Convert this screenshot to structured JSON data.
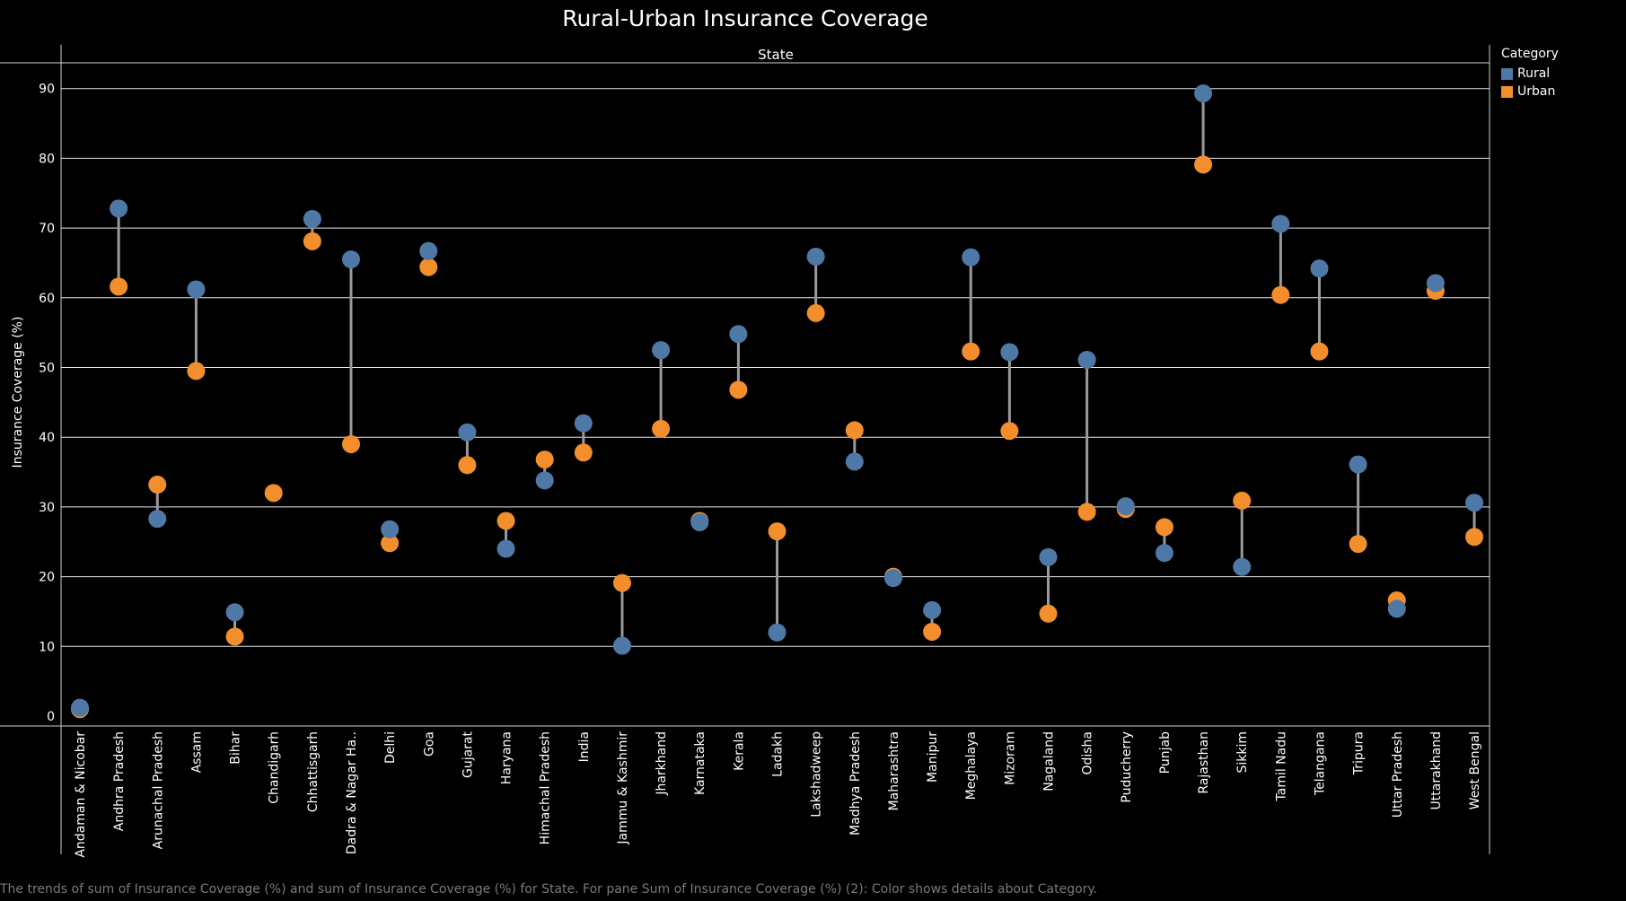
{
  "title": "Rural-Urban Insurance Coverage",
  "caption": "The trends of sum of Insurance Coverage (%) and sum of Insurance Coverage (%) for State.  For pane Sum of Insurance Coverage (%) (2):  Color shows details about Category.",
  "legend": {
    "title": "Category",
    "items": [
      {
        "label": "Rural",
        "color": "#4e79a7"
      },
      {
        "label": "Urban",
        "color": "#f28e2b"
      }
    ]
  },
  "chart_data": {
    "type": "dumbbell",
    "column_header": "State",
    "ylabel": "Insurance Coverage (%)",
    "ylim": [
      0,
      95
    ],
    "yticks": [
      0,
      10,
      20,
      30,
      40,
      50,
      60,
      70,
      80,
      90
    ],
    "grid": true,
    "legend_position": "top-right",
    "categories": [
      "Andaman & Nicobar",
      "Andhra Pradesh",
      "Arunachal Pradesh",
      "Assam",
      "Bihar",
      "Chandigarh",
      "Chhattisgarh",
      "Dadra & Nagar Ha..",
      "Delhi",
      "Goa",
      "Gujarat",
      "Haryana",
      "Himachal Pradesh",
      "India",
      "Jammu & Kashmir",
      "Jharkhand",
      "Karnataka",
      "Kerala",
      "Ladakh",
      "Lakshadweep",
      "Madhya Pradesh",
      "Maharashtra",
      "Manipur",
      "Meghalaya",
      "Mizoram",
      "Nagaland",
      "Odisha",
      "Puducherry",
      "Punjab",
      "Rajasthan",
      "Sikkim",
      "Tamil Nadu",
      "Telangana",
      "Tripura",
      "Uttar Pradesh",
      "Uttarakhand",
      "West Bengal"
    ],
    "series": [
      {
        "name": "Rural",
        "color": "#4e79a7",
        "values": [
          1.2,
          72.8,
          28.3,
          61.2,
          14.9,
          null,
          71.3,
          65.5,
          26.8,
          66.7,
          40.7,
          24.0,
          33.8,
          42.0,
          10.1,
          52.5,
          27.8,
          54.8,
          12.0,
          65.9,
          36.5,
          19.8,
          15.2,
          65.8,
          52.2,
          22.8,
          51.1,
          30.1,
          23.4,
          89.3,
          21.4,
          70.6,
          64.2,
          36.1,
          15.4,
          62.1,
          30.6
        ]
      },
      {
        "name": "Urban",
        "color": "#f28e2b",
        "values": [
          1.0,
          61.6,
          33.2,
          49.5,
          11.4,
          32.0,
          68.1,
          39.0,
          24.8,
          64.4,
          36.0,
          28.0,
          36.8,
          37.8,
          19.1,
          41.2,
          28.0,
          46.8,
          26.5,
          57.8,
          41.0,
          20.0,
          12.1,
          52.3,
          40.9,
          14.7,
          29.3,
          29.7,
          27.1,
          79.1,
          30.9,
          60.4,
          52.3,
          24.7,
          16.6,
          61.0,
          25.7
        ]
      }
    ]
  }
}
